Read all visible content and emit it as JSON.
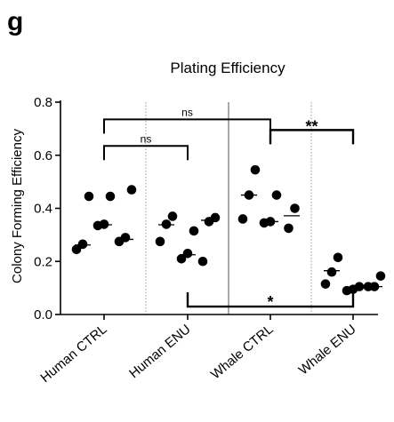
{
  "figure": {
    "panel_label": "g"
  },
  "chart_data": {
    "type": "scatter",
    "title": "Plating Efficiency",
    "xlabel": "",
    "ylabel": "Colony Forming Efficiency",
    "ylim": [
      0,
      0.8
    ],
    "yticks": [
      "0.0",
      "0.2",
      "0.4",
      "0.6",
      "0.8"
    ],
    "categories": [
      "Human CTRL",
      "Human ENU",
      "Whale CTRL",
      "Whale ENU"
    ],
    "grid": false,
    "groups": [
      {
        "name": "Human CTRL",
        "replicates": [
          {
            "points": [
              0.245,
              0.265,
              0.445
            ],
            "mean": 0.262
          },
          {
            "points": [
              0.335,
              0.34,
              0.445
            ],
            "mean": 0.338
          },
          {
            "points": [
              0.275,
              0.29,
              0.47
            ],
            "mean": 0.283
          }
        ]
      },
      {
        "name": "Human ENU",
        "replicates": [
          {
            "points": [
              0.275,
              0.34,
              0.37
            ],
            "mean": 0.338
          },
          {
            "points": [
              0.21,
              0.23,
              0.315
            ],
            "mean": 0.225
          },
          {
            "points": [
              0.2,
              0.35,
              0.365
            ],
            "mean": 0.355
          }
        ]
      },
      {
        "name": "Whale CTRL",
        "replicates": [
          {
            "points": [
              0.36,
              0.45,
              0.545
            ],
            "mean": 0.45
          },
          {
            "points": [
              0.345,
              0.35,
              0.45
            ],
            "mean": 0.35
          },
          {
            "points": [
              0.325,
              0.4
            ],
            "mean": 0.372
          }
        ]
      },
      {
        "name": "Whale ENU",
        "replicates": [
          {
            "points": [
              0.115,
              0.16,
              0.215
            ],
            "mean": 0.165
          },
          {
            "points": [
              0.09,
              0.095,
              0.105
            ],
            "mean": 0.095
          },
          {
            "points": [
              0.105,
              0.105,
              0.145
            ],
            "mean": 0.105
          }
        ]
      }
    ],
    "annotations": [
      {
        "label": "ns",
        "from": "Human CTRL",
        "to": "Whale CTRL",
        "y": 0.735,
        "side": "above"
      },
      {
        "label": "ns",
        "from": "Human CTRL",
        "to": "Human ENU",
        "y": 0.635,
        "side": "above"
      },
      {
        "label": "**",
        "from": "Whale CTRL",
        "to": "Whale ENU",
        "y": 0.695,
        "side": "above"
      },
      {
        "label": "*",
        "from": "Human ENU",
        "to": "Whale ENU",
        "y": 0.03,
        "side": "below"
      }
    ],
    "colors": {
      "points": "#000000",
      "axis": "#000000",
      "separator": "#999999"
    }
  }
}
